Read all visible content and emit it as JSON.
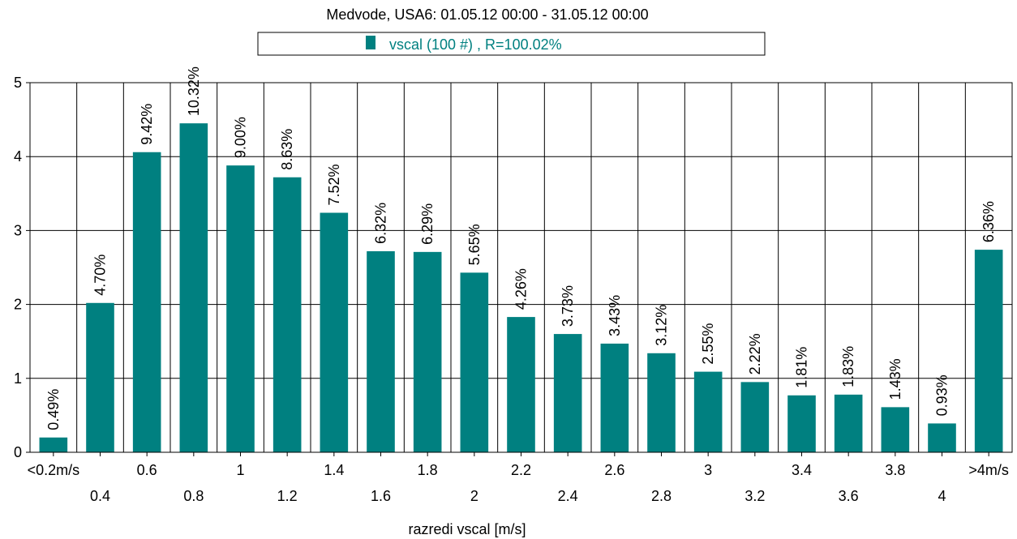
{
  "chart_data": {
    "type": "bar",
    "title": "Medvode, USA6: 01.05.12 00:00 - 31.05.12 00:00",
    "xlabel": "razredi vscal [m/s]",
    "ylabel": "",
    "ylim": [
      0,
      5
    ],
    "yticks": [
      0,
      1,
      2,
      3,
      4,
      5
    ],
    "grid": true,
    "legend": {
      "position": "top-center",
      "entries": [
        "vscal (100 #) , R=100.02%"
      ]
    },
    "bar_color": "#008080",
    "categories": [
      "<0.2m/s",
      "0.4",
      "0.6",
      "0.8",
      "1",
      "1.2",
      "1.4",
      "1.6",
      "1.8",
      "2",
      "2.2",
      "2.4",
      "2.6",
      "2.8",
      "3",
      "3.2",
      "3.4",
      "3.6",
      "3.8",
      "4",
      ">4m/s"
    ],
    "values": [
      0.2,
      2.02,
      4.06,
      4.45,
      3.88,
      3.72,
      3.24,
      2.72,
      2.71,
      2.43,
      1.83,
      1.6,
      1.47,
      1.34,
      1.09,
      0.95,
      0.77,
      0.78,
      0.61,
      0.39,
      2.74
    ],
    "data_labels": [
      "0.49%",
      "4.70%",
      "9.42%",
      "10.32%",
      "9.00%",
      "8.63%",
      "7.52%",
      "6.32%",
      "6.29%",
      "5.65%",
      "4.26%",
      "3.73%",
      "3.43%",
      "3.12%",
      "2.55%",
      "2.22%",
      "1.81%",
      "1.83%",
      "1.43%",
      "0.93%",
      "6.36%"
    ]
  }
}
